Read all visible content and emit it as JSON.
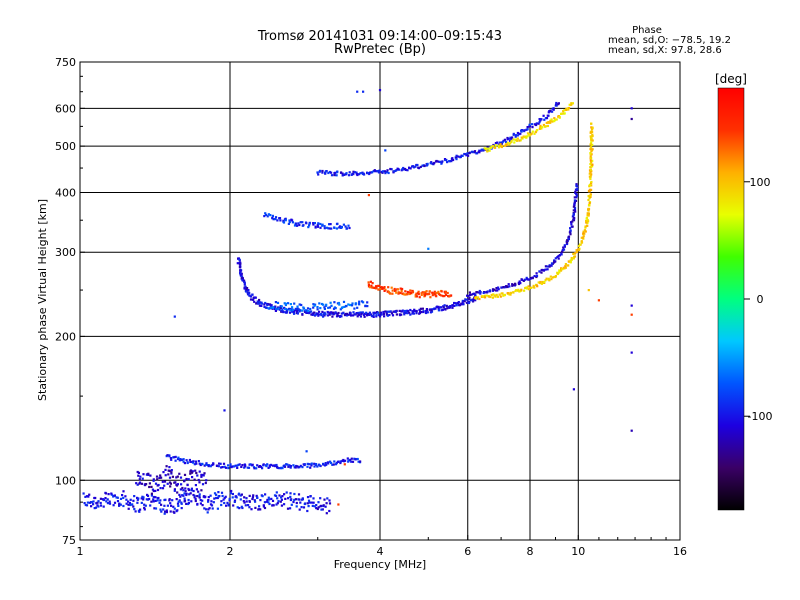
{
  "chart_data": {
    "type": "scatter",
    "title": "Tromsø 20141031 09:14:00–09:15:43",
    "subtitle": "RwPretec (Bp)",
    "xlabel": "Frequency [MHz]",
    "ylabel": "Stationary phase Virtual Height [km]",
    "x_scale": "log",
    "y_scale": "log",
    "xlim": [
      1,
      16
    ],
    "ylim": [
      75,
      750
    ],
    "xticks": [
      1,
      2,
      4,
      6,
      8,
      10,
      16
    ],
    "yticks": [
      75,
      100,
      200,
      300,
      400,
      500,
      600,
      750
    ],
    "grid": true,
    "phase_info": {
      "title": "Phase",
      "line_o": "mean, sd,O: −78.5, 19.2",
      "line_x": "mean, sd,X: 97.8, 28.6"
    },
    "colorbar": {
      "label": "[deg]",
      "range": [
        -180,
        180
      ],
      "ticks": [
        -100,
        0,
        100
      ],
      "colors": [
        "#000000",
        "#3a0066",
        "#1d00e0",
        "#0055ff",
        "#00c8ff",
        "#00ff80",
        "#40ff00",
        "#e8ff00",
        "#ffb000",
        "#ff3000",
        "#ff0000"
      ]
    },
    "series": [
      {
        "mode": "o",
        "mean_phase": -78.5,
        "sd": 19.2
      },
      {
        "mode": "x",
        "mean_phase": 97.8,
        "sd": 28.6
      }
    ],
    "traces": [
      {
        "f": [
          1.02,
          1.1,
          1.2,
          1.3,
          1.4,
          1.5,
          1.6,
          1.7,
          1.8,
          1.9,
          2.0,
          2.2,
          2.5,
          2.8,
          3.0,
          3.2
        ],
        "h": [
          91,
          90,
          92,
          89,
          91,
          88,
          90,
          93,
          89,
          91,
          92,
          90,
          91,
          90,
          89,
          88
        ],
        "p": -100,
        "jit": 0.04,
        "n": 3
      },
      {
        "f": [
          1.3,
          1.4,
          1.5,
          1.6,
          1.7,
          1.8
        ],
        "h": [
          100,
          98,
          103,
          97,
          101,
          99
        ],
        "p": -115,
        "jit": 0.05,
        "n": 3
      },
      {
        "f": [
          1.5,
          1.6,
          1.8,
          2.0,
          2.2,
          2.5,
          2.8,
          3.1,
          3.4,
          3.7
        ],
        "h": [
          112,
          110,
          108,
          107,
          107,
          107,
          107,
          108,
          110,
          110
        ],
        "p": -95,
        "jit": 0.01,
        "n": 2
      },
      {
        "f": [
          2.08,
          2.12,
          2.18,
          2.3,
          2.5,
          2.8,
          3.2,
          3.8,
          4.5,
          5.2,
          5.8,
          6.3
        ],
        "h": [
          290,
          262,
          245,
          234,
          228,
          224,
          222,
          222,
          224,
          228,
          234,
          242
        ],
        "p": -105,
        "jit": 0.012,
        "n": 3
      },
      {
        "f": [
          2.4,
          2.7,
          3.0,
          3.4,
          3.8
        ],
        "h": [
          232,
          230,
          230,
          232,
          234
        ],
        "p": -75,
        "jit": 0.02,
        "n": 2
      },
      {
        "f": [
          3.8,
          4.1,
          4.4,
          4.8,
          5.2,
          5.6
        ],
        "h": [
          258,
          250,
          248,
          245,
          245,
          246
        ],
        "p": 140,
        "jit": 0.015,
        "n": 3
      },
      {
        "f": [
          6.0,
          6.8,
          7.5,
          8.2,
          8.8,
          9.3,
          9.6,
          9.8,
          9.95
        ],
        "h": [
          245,
          250,
          258,
          268,
          282,
          300,
          325,
          360,
          420
        ],
        "p": -110,
        "jit": 0.008,
        "n": 2
      },
      {
        "f": [
          6.2,
          7.2,
          8.2,
          9.0,
          9.6,
          10.1,
          10.4,
          10.55,
          10.62,
          10.65
        ],
        "h": [
          240,
          245,
          255,
          268,
          285,
          310,
          345,
          395,
          460,
          560
        ],
        "p": 95,
        "jit": 0.008,
        "n": 2
      },
      {
        "f": [
          3.0,
          3.4,
          3.8,
          4.2,
          4.6,
          5.0,
          5.5,
          6.0,
          6.6,
          7.2,
          7.8,
          8.4,
          8.9,
          9.2
        ],
        "h": [
          440,
          438,
          440,
          444,
          450,
          458,
          468,
          480,
          495,
          515,
          540,
          565,
          595,
          620
        ],
        "p": -100,
        "jit": 0.01,
        "n": 2
      },
      {
        "f": [
          6.5,
          7.2,
          8.0,
          8.8,
          9.4,
          9.8
        ],
        "h": [
          490,
          505,
          530,
          560,
          590,
          620
        ],
        "p": 90,
        "jit": 0.01,
        "n": 2
      },
      {
        "f": [
          2.35,
          2.5,
          2.7,
          2.9,
          3.2,
          3.5
        ],
        "h": [
          358,
          352,
          345,
          342,
          340,
          340
        ],
        "p": -90,
        "jit": 0.012,
        "n": 2
      }
    ],
    "extra_points": [
      {
        "f": 3.6,
        "h": 650,
        "p": -90
      },
      {
        "f": 3.7,
        "h": 650,
        "p": -90
      },
      {
        "f": 4.0,
        "h": 655,
        "p": -110
      },
      {
        "f": 3.8,
        "h": 395,
        "p": 140
      },
      {
        "f": 5.0,
        "h": 305,
        "p": -60
      },
      {
        "f": 1.55,
        "h": 220,
        "p": -90
      },
      {
        "f": 12.8,
        "h": 600,
        "p": -110
      },
      {
        "f": 12.8,
        "h": 570,
        "p": -130
      },
      {
        "f": 11.0,
        "h": 238,
        "p": 140
      },
      {
        "f": 12.8,
        "h": 232,
        "p": -110
      },
      {
        "f": 12.8,
        "h": 222,
        "p": 140
      },
      {
        "f": 12.8,
        "h": 185,
        "p": -110
      },
      {
        "f": 12.8,
        "h": 127,
        "p": -120
      },
      {
        "f": 9.8,
        "h": 155,
        "p": -110
      },
      {
        "f": 1.95,
        "h": 140,
        "p": -100
      },
      {
        "f": 2.85,
        "h": 115,
        "p": -80
      },
      {
        "f": 3.4,
        "h": 108,
        "p": 140
      },
      {
        "f": 3.3,
        "h": 89,
        "p": 140
      },
      {
        "f": 10.5,
        "h": 250,
        "p": 100
      },
      {
        "f": 4.1,
        "h": 490,
        "p": -80
      }
    ]
  }
}
